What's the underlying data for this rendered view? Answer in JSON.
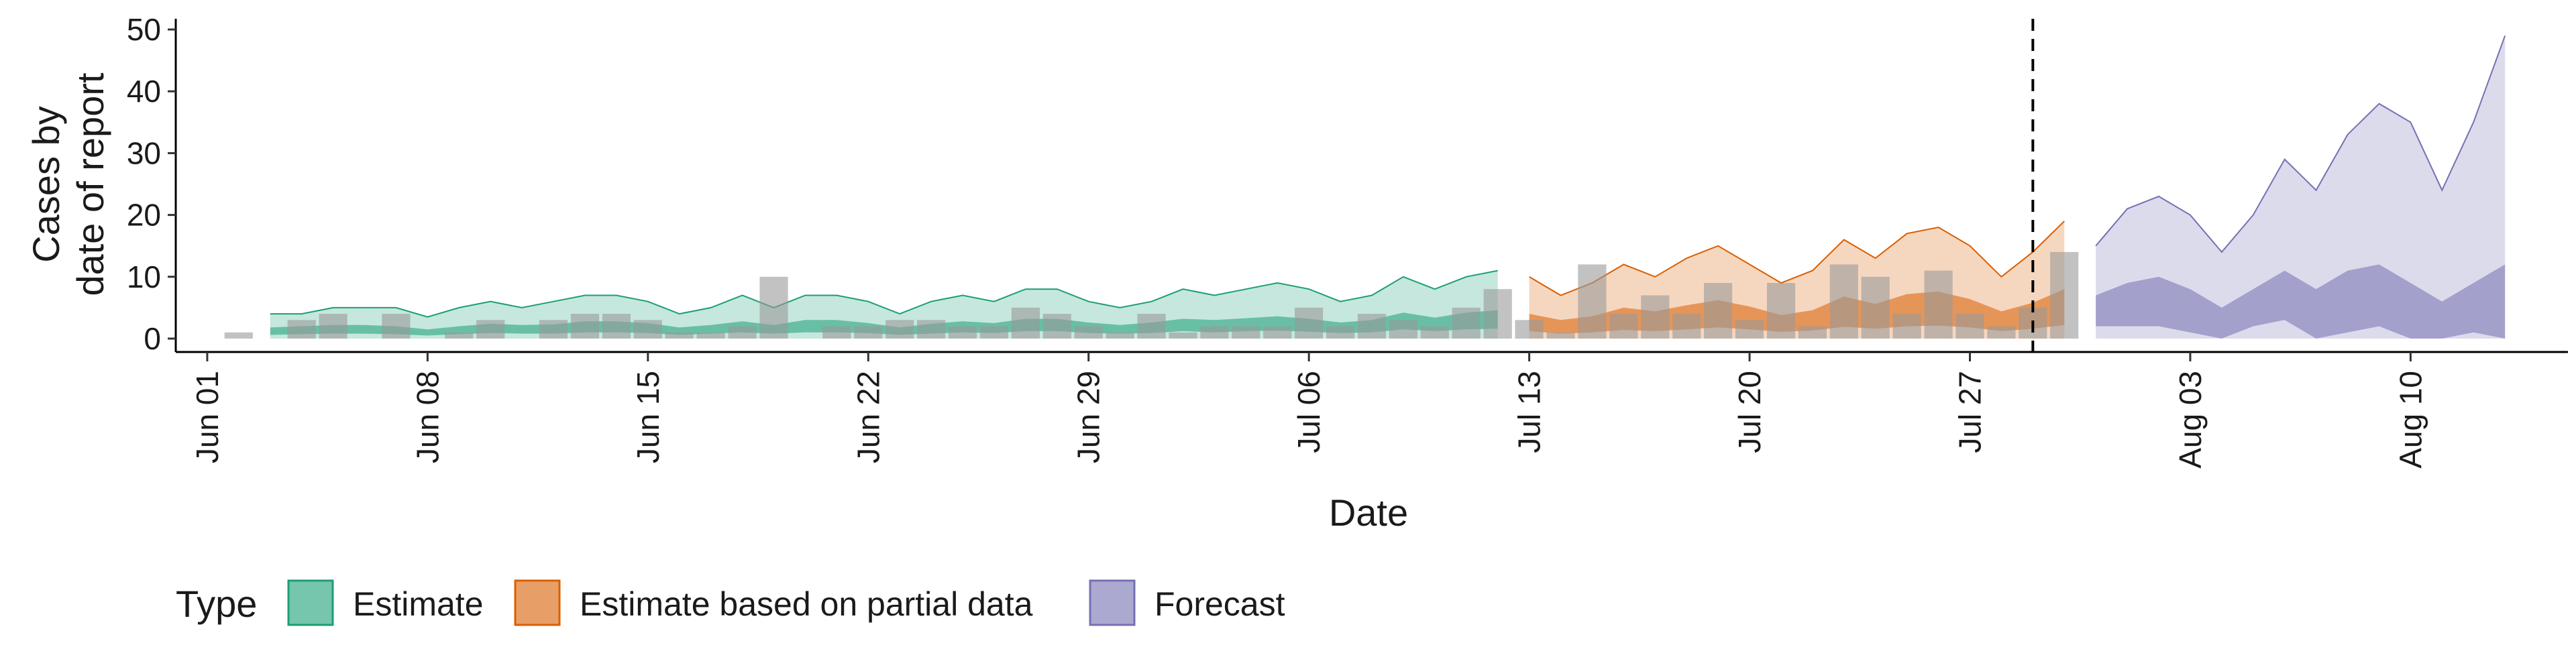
{
  "chart_data": {
    "type": "area",
    "xlabel": "Date",
    "ylabel_lines": [
      "Cases by",
      "date of report"
    ],
    "x_ticks": [
      "Jun 01",
      "Jun 08",
      "Jun 15",
      "Jun 22",
      "Jun 29",
      "Jul 06",
      "Jul 13",
      "Jul 20",
      "Jul 27",
      "Aug 03",
      "Aug 10"
    ],
    "x_tick_dates": [
      "2020-06-01",
      "2020-06-08",
      "2020-06-15",
      "2020-06-22",
      "2020-06-29",
      "2020-07-06",
      "2020-07-13",
      "2020-07-20",
      "2020-07-27",
      "2020-08-03",
      "2020-08-10"
    ],
    "xlim": [
      "2020-05-31",
      "2020-08-15"
    ],
    "ylim": [
      0,
      52
    ],
    "y_ticks": [
      "0",
      "10",
      "20",
      "30",
      "40",
      "50"
    ],
    "y_tick_values": [
      0,
      10,
      20,
      30,
      40,
      50
    ],
    "grid": false,
    "legend": {
      "title": "Type",
      "position": "bottom",
      "items": [
        {
          "label": "Estimate",
          "color": "#1b9e77"
        },
        {
          "label": "Estimate based on partial data",
          "color": "#d95f02"
        },
        {
          "label": "Forecast",
          "color": "#7570b3"
        }
      ]
    },
    "vline_date": "2020-07-29",
    "reported_cases": {
      "color": "#999999",
      "points": [
        [
          "2020-06-02",
          1
        ],
        [
          "2020-06-03",
          0
        ],
        [
          "2020-06-04",
          3
        ],
        [
          "2020-06-05",
          4
        ],
        [
          "2020-06-06",
          0
        ],
        [
          "2020-06-07",
          4
        ],
        [
          "2020-06-08",
          0
        ],
        [
          "2020-06-09",
          1
        ],
        [
          "2020-06-10",
          3
        ],
        [
          "2020-06-11",
          0
        ],
        [
          "2020-06-12",
          3
        ],
        [
          "2020-06-13",
          4
        ],
        [
          "2020-06-14",
          4
        ],
        [
          "2020-06-15",
          3
        ],
        [
          "2020-06-16",
          1
        ],
        [
          "2020-06-17",
          1
        ],
        [
          "2020-06-18",
          2
        ],
        [
          "2020-06-19",
          10
        ],
        [
          "2020-06-20",
          0
        ],
        [
          "2020-06-21",
          2
        ],
        [
          "2020-06-22",
          2
        ],
        [
          "2020-06-23",
          3
        ],
        [
          "2020-06-24",
          3
        ],
        [
          "2020-06-25",
          2
        ],
        [
          "2020-06-26",
          2
        ],
        [
          "2020-06-27",
          5
        ],
        [
          "2020-06-28",
          4
        ],
        [
          "2020-06-29",
          2
        ],
        [
          "2020-06-30",
          1
        ],
        [
          "2020-07-01",
          4
        ],
        [
          "2020-07-02",
          1
        ],
        [
          "2020-07-03",
          2
        ],
        [
          "2020-07-04",
          2
        ],
        [
          "2020-07-05",
          2
        ],
        [
          "2020-07-06",
          5
        ],
        [
          "2020-07-07",
          2
        ],
        [
          "2020-07-08",
          4
        ],
        [
          "2020-07-09",
          3
        ],
        [
          "2020-07-10",
          2
        ],
        [
          "2020-07-11",
          5
        ],
        [
          "2020-07-12",
          8
        ],
        [
          "2020-07-13",
          3
        ],
        [
          "2020-07-14",
          1
        ],
        [
          "2020-07-15",
          12
        ],
        [
          "2020-07-16",
          4
        ],
        [
          "2020-07-17",
          7
        ],
        [
          "2020-07-18",
          4
        ],
        [
          "2020-07-19",
          9
        ],
        [
          "2020-07-20",
          3
        ],
        [
          "2020-07-21",
          9
        ],
        [
          "2020-07-22",
          2
        ],
        [
          "2020-07-23",
          12
        ],
        [
          "2020-07-24",
          10
        ],
        [
          "2020-07-25",
          4
        ],
        [
          "2020-07-26",
          11
        ],
        [
          "2020-07-27",
          4
        ],
        [
          "2020-07-28",
          2
        ],
        [
          "2020-07-29",
          5
        ],
        [
          "2020-07-30",
          14
        ]
      ]
    },
    "series": [
      {
        "name": "Estimate",
        "color": "#1b9e77",
        "points": [
          [
            "2020-06-03",
            0,
            4,
            0.6,
            1.8
          ],
          [
            "2020-06-04",
            0,
            4,
            0.7,
            2.0
          ],
          [
            "2020-06-05",
            0,
            5,
            0.8,
            2.2
          ],
          [
            "2020-06-06",
            0,
            5,
            0.8,
            2.2
          ],
          [
            "2020-06-07",
            0,
            5,
            0.7,
            2.0
          ],
          [
            "2020-06-08",
            0,
            3.5,
            0.5,
            1.5
          ],
          [
            "2020-06-09",
            0,
            5,
            0.7,
            2.0
          ],
          [
            "2020-06-10",
            0,
            6,
            0.9,
            2.4
          ],
          [
            "2020-06-11",
            0,
            5,
            0.8,
            2.2
          ],
          [
            "2020-06-12",
            0,
            6,
            0.8,
            2.3
          ],
          [
            "2020-06-13",
            0,
            7,
            1.0,
            2.8
          ],
          [
            "2020-06-14",
            0,
            7,
            1.0,
            2.8
          ],
          [
            "2020-06-15",
            0,
            6,
            0.9,
            2.5
          ],
          [
            "2020-06-16",
            0,
            4,
            0.6,
            1.8
          ],
          [
            "2020-06-17",
            0,
            5,
            0.8,
            2.2
          ],
          [
            "2020-06-18",
            0,
            7,
            1.0,
            2.8
          ],
          [
            "2020-06-19",
            0,
            5,
            0.8,
            2.2
          ],
          [
            "2020-06-20",
            0,
            7,
            1.0,
            3.0
          ],
          [
            "2020-06-21",
            0,
            7,
            1.0,
            3.0
          ],
          [
            "2020-06-22",
            0,
            6,
            0.9,
            2.5
          ],
          [
            "2020-06-23",
            0,
            4,
            0.6,
            1.8
          ],
          [
            "2020-06-24",
            0,
            6,
            0.8,
            2.4
          ],
          [
            "2020-06-25",
            0,
            7,
            1.0,
            2.8
          ],
          [
            "2020-06-26",
            0,
            6,
            0.9,
            2.5
          ],
          [
            "2020-06-27",
            0,
            8,
            1.2,
            3.2
          ],
          [
            "2020-06-28",
            0,
            8,
            1.2,
            3.2
          ],
          [
            "2020-06-29",
            0,
            6,
            0.9,
            2.6
          ],
          [
            "2020-06-30",
            0,
            5,
            0.8,
            2.2
          ],
          [
            "2020-07-01",
            0,
            6,
            0.9,
            2.6
          ],
          [
            "2020-07-02",
            0,
            8,
            1.2,
            3.2
          ],
          [
            "2020-07-03",
            0,
            7,
            1.0,
            3.0
          ],
          [
            "2020-07-04",
            0,
            8,
            1.2,
            3.3
          ],
          [
            "2020-07-05",
            0,
            9,
            1.3,
            3.6
          ],
          [
            "2020-07-06",
            0,
            8,
            1.1,
            3.2
          ],
          [
            "2020-07-07",
            0,
            6,
            0.9,
            2.6
          ],
          [
            "2020-07-08",
            0,
            7,
            1.0,
            3.0
          ],
          [
            "2020-07-09",
            0,
            10,
            1.5,
            4.2
          ],
          [
            "2020-07-10",
            0,
            8,
            1.2,
            3.4
          ],
          [
            "2020-07-11",
            0,
            10,
            1.5,
            4.2
          ],
          [
            "2020-07-12",
            0,
            11,
            1.6,
            4.6
          ]
        ]
      },
      {
        "name": "Estimate based on partial data",
        "color": "#d95f02",
        "points": [
          [
            "2020-07-13",
            0,
            10,
            1.2,
            4.0
          ],
          [
            "2020-07-14",
            0,
            7,
            0.8,
            3.0
          ],
          [
            "2020-07-15",
            0,
            9,
            1.0,
            3.6
          ],
          [
            "2020-07-16",
            0,
            12,
            1.4,
            5.0
          ],
          [
            "2020-07-17",
            0,
            10,
            1.2,
            4.4
          ],
          [
            "2020-07-18",
            0,
            13,
            1.5,
            5.4
          ],
          [
            "2020-07-19",
            0,
            15,
            1.8,
            6.2
          ],
          [
            "2020-07-20",
            0,
            12,
            1.5,
            5.2
          ],
          [
            "2020-07-21",
            0,
            9,
            1.1,
            3.8
          ],
          [
            "2020-07-22",
            0,
            11,
            1.3,
            4.6
          ],
          [
            "2020-07-23",
            0,
            16,
            1.9,
            6.8
          ],
          [
            "2020-07-24",
            0,
            13,
            1.6,
            5.6
          ],
          [
            "2020-07-25",
            0,
            17,
            2.0,
            7.2
          ],
          [
            "2020-07-26",
            0,
            18,
            2.1,
            7.6
          ],
          [
            "2020-07-27",
            0,
            15,
            1.8,
            6.4
          ],
          [
            "2020-07-28",
            0,
            10,
            1.2,
            4.4
          ],
          [
            "2020-07-29",
            0,
            14,
            1.6,
            5.8
          ],
          [
            "2020-07-30",
            0,
            19,
            2.2,
            8.0
          ]
        ]
      },
      {
        "name": "Forecast",
        "color": "#7570b3",
        "points": [
          [
            "2020-07-31",
            0,
            15,
            2.0,
            7.0
          ],
          [
            "2020-08-01",
            0,
            21,
            2.0,
            9.0
          ],
          [
            "2020-08-02",
            0,
            23,
            2.0,
            10.0
          ],
          [
            "2020-08-03",
            0,
            20,
            1.0,
            8.0
          ],
          [
            "2020-08-04",
            0,
            14,
            0.0,
            5.0
          ],
          [
            "2020-08-05",
            0,
            20,
            2.0,
            8.0
          ],
          [
            "2020-08-06",
            0,
            29,
            3.0,
            11.0
          ],
          [
            "2020-08-07",
            0,
            24,
            0.0,
            8.0
          ],
          [
            "2020-08-08",
            0,
            33,
            1.0,
            11.0
          ],
          [
            "2020-08-09",
            0,
            38,
            2.0,
            12.0
          ],
          [
            "2020-08-10",
            0,
            35,
            0.0,
            9.0
          ],
          [
            "2020-08-11",
            0,
            24,
            0.0,
            6.0
          ],
          [
            "2020-08-12",
            0,
            35,
            1.0,
            9.0
          ],
          [
            "2020-08-13",
            0,
            49,
            0.0,
            12.0
          ]
        ]
      }
    ]
  }
}
